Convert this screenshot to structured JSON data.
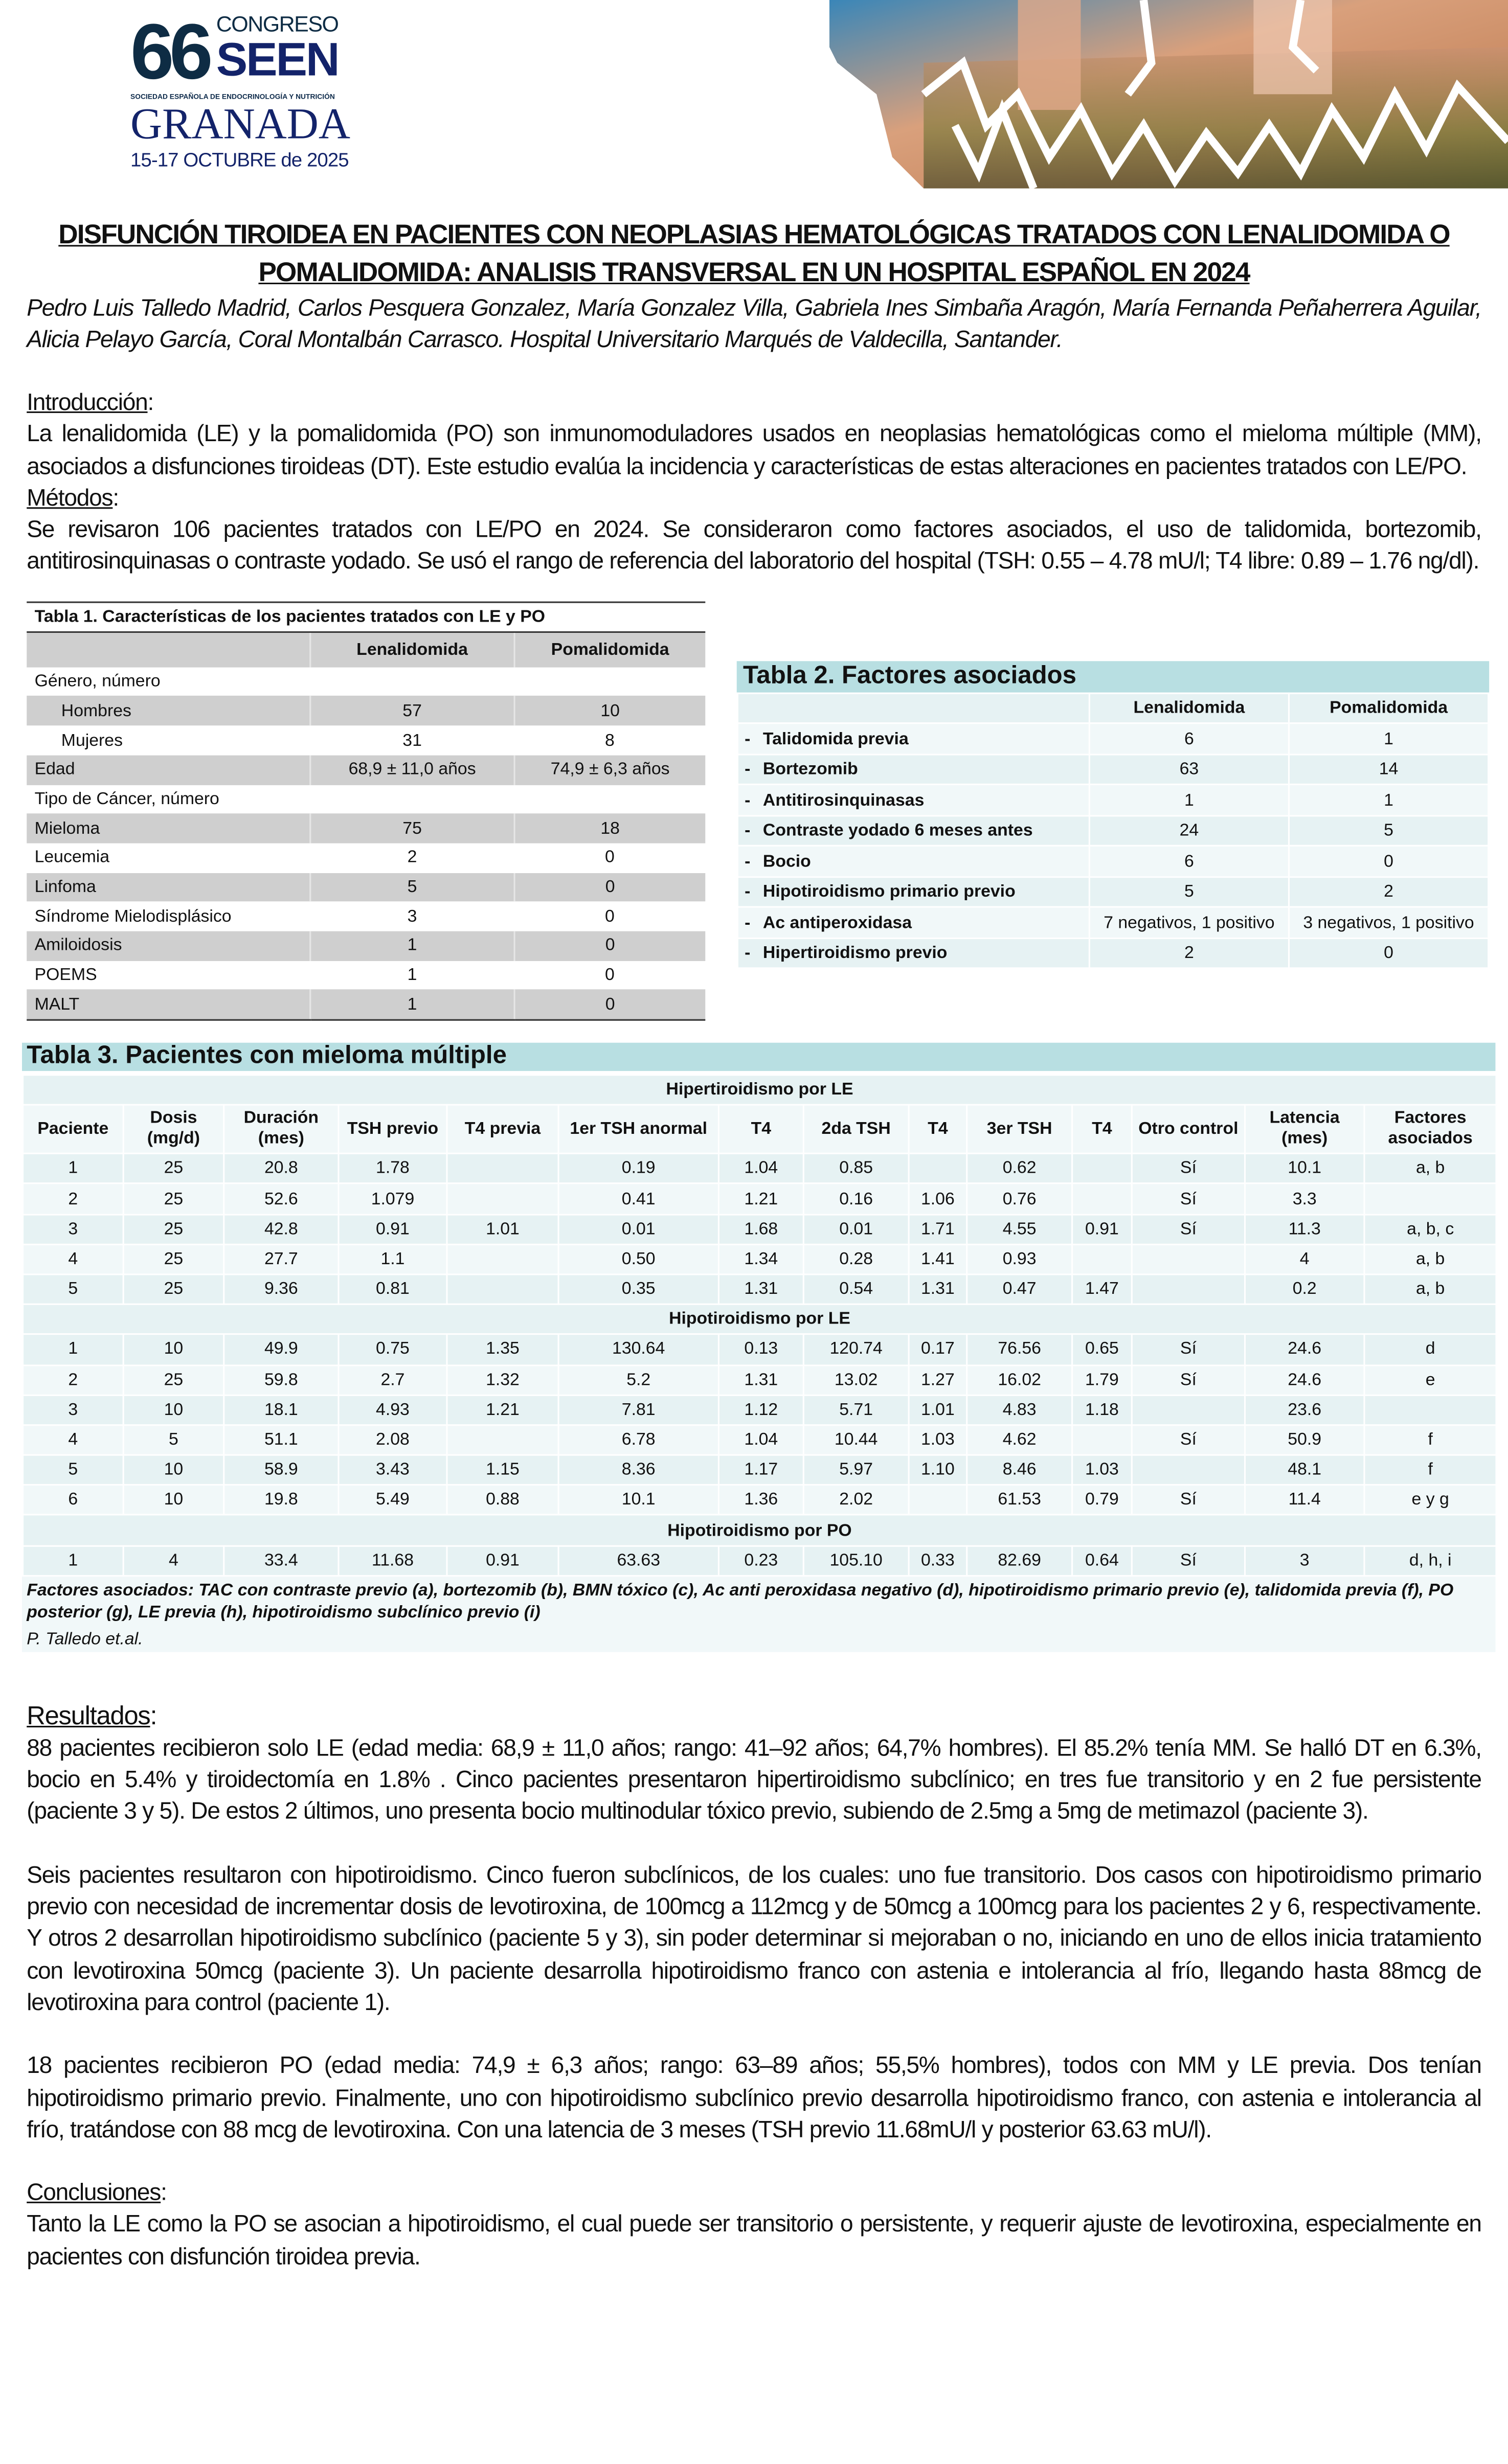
{
  "logo": {
    "number": "66",
    "congreso": "CONGRESO",
    "seen": "SEEN",
    "society": "SOCIEDAD ESPAÑOLA DE ENDOCRINOLOGÍA Y NUTRICIÓN",
    "city": "GRANADA",
    "dates": "15-17 OCTUBRE de 2025"
  },
  "title": "DISFUNCIÓN TIROIDEA EN PACIENTES CON NEOPLASIAS HEMATOLÓGICAS TRATADOS CON LENALIDOMIDA O POMALIDOMIDA: ANALISIS TRANSVERSAL EN UN HOSPITAL ESPAÑOL EN 2024",
  "authors": "Pedro Luis Talledo Madrid, Carlos Pesquera Gonzalez, María Gonzalez Villa, Gabriela Ines Simbaña Aragón, María Fernanda Peñaherrera Aguilar, Alicia Pelayo García, Coral Montalbán Carrasco. Hospital Universitario Marqués de Valdecilla, Santander.",
  "intro": {
    "heading": "Introducción",
    "text": "La lenalidomida (LE) y la pomalidomida (PO) son inmunomoduladores usados en neoplasias hematológicas como el mieloma múltiple (MM), asociados a disfunciones tiroideas (DT). Este estudio evalúa la incidencia y características de estas alteraciones en pacientes tratados con LE/PO."
  },
  "methods": {
    "heading": "Métodos",
    "text": "Se revisaron 106 pacientes tratados con LE/PO en 2024. Se consideraron como factores asociados, el uso de talidomida, bortezomib, antitirosinquinasas o contraste yodado. Se usó el rango de referencia del laboratorio del hospital (TSH: 0.55 – 4.78 mU/l; T4 libre: 0.89 – 1.76 ng/dl)."
  },
  "table1": {
    "caption": "Tabla 1. Características de los pacientes tratados con LE y PO",
    "columns": [
      "",
      "Lenalidomida",
      "Pomalidomida"
    ],
    "rows": [
      {
        "label": "Género, número",
        "le": "",
        "po": "",
        "shade": false
      },
      {
        "label": "Hombres",
        "le": "57",
        "po": "10",
        "shade": true,
        "indent": true
      },
      {
        "label": "Mujeres",
        "le": "31",
        "po": "8",
        "shade": false,
        "indent": true
      },
      {
        "label": "Edad",
        "le": "68,9 ± 11,0 años",
        "po": "74,9 ± 6,3 años",
        "shade": true
      },
      {
        "label": "Tipo de Cáncer, número",
        "le": "",
        "po": "",
        "shade": false
      },
      {
        "label": "Mieloma",
        "le": "75",
        "po": "18",
        "shade": true
      },
      {
        "label": "Leucemia",
        "le": "2",
        "po": "0",
        "shade": false
      },
      {
        "label": "Linfoma",
        "le": "5",
        "po": "0",
        "shade": true
      },
      {
        "label": "Síndrome Mielodisplásico",
        "le": "3",
        "po": "0",
        "shade": false
      },
      {
        "label": "Amiloidosis",
        "le": "1",
        "po": "0",
        "shade": true
      },
      {
        "label": "POEMS",
        "le": "1",
        "po": "0",
        "shade": false
      },
      {
        "label": "MALT",
        "le": "1",
        "po": "0",
        "shade": true
      }
    ]
  },
  "table2": {
    "caption": "Tabla 2. Factores asociados",
    "columns": [
      "",
      "Lenalidomida",
      "Pomalidomida"
    ],
    "bullet": "-",
    "rows": [
      {
        "label": "Talidomida previa",
        "le": "6",
        "po": "1"
      },
      {
        "label": "Bortezomib",
        "le": "63",
        "po": "14"
      },
      {
        "label": "Antitirosinquinasas",
        "le": "1",
        "po": "1"
      },
      {
        "label": "Contraste yodado 6 meses antes",
        "le": "24",
        "po": "5"
      },
      {
        "label": "Bocio",
        "le": "6",
        "po": "0"
      },
      {
        "label": "Hipotiroidismo primario previo",
        "le": "5",
        "po": "2"
      },
      {
        "label": "Ac antiperoxidasa",
        "le": "7 negativos, 1 positivo",
        "po": "3 negativos, 1 positivo"
      },
      {
        "label": "Hipertiroidismo previo",
        "le": "2",
        "po": "0"
      }
    ]
  },
  "table3": {
    "caption": "Tabla 3. Pacientes con mieloma múltiple",
    "columns": [
      "Paciente",
      "Dosis (mg/d)",
      "Duración (mes)",
      "TSH previo",
      "T4 previa",
      "1er TSH anormal",
      "T4",
      "2da TSH",
      "T4",
      "3er TSH",
      "T4",
      "Otro control",
      "Latencia (mes)",
      "Factores asociados"
    ],
    "groups": [
      {
        "title": "Hipertiroidismo por LE",
        "rows": [
          [
            "1",
            "25",
            "20.8",
            "1.78",
            "",
            "0.19",
            "1.04",
            "0.85",
            "",
            "0.62",
            "",
            "Sí",
            "10.1",
            "a, b"
          ],
          [
            "2",
            "25",
            "52.6",
            "1.079",
            "",
            "0.41",
            "1.21",
            "0.16",
            "1.06",
            "0.76",
            "",
            "Sí",
            "3.3",
            ""
          ],
          [
            "3",
            "25",
            "42.8",
            "0.91",
            "1.01",
            "0.01",
            "1.68",
            "0.01",
            "1.71",
            "4.55",
            "0.91",
            "Sí",
            "11.3",
            "a, b, c"
          ],
          [
            "4",
            "25",
            "27.7",
            "1.1",
            "",
            "0.50",
            "1.34",
            "0.28",
            "1.41",
            "0.93",
            "",
            "",
            "4",
            "a, b"
          ],
          [
            "5",
            "25",
            "9.36",
            "0.81",
            "",
            "0.35",
            "1.31",
            "0.54",
            "1.31",
            "0.47",
            "1.47",
            "",
            "0.2",
            "a, b"
          ]
        ]
      },
      {
        "title": "Hipotiroidismo por LE",
        "rows": [
          [
            "1",
            "10",
            "49.9",
            "0.75",
            "1.35",
            "130.64",
            "0.13",
            "120.74",
            "0.17",
            "76.56",
            "0.65",
            "Sí",
            "24.6",
            "d"
          ],
          [
            "2",
            "25",
            "59.8",
            "2.7",
            "1.32",
            "5.2",
            "1.31",
            "13.02",
            "1.27",
            "16.02",
            "1.79",
            "Sí",
            "24.6",
            "e"
          ],
          [
            "3",
            "10",
            "18.1",
            "4.93",
            "1.21",
            "7.81",
            "1.12",
            "5.71",
            "1.01",
            "4.83",
            "1.18",
            "",
            "23.6",
            ""
          ],
          [
            "4",
            "5",
            "51.1",
            "2.08",
            "",
            "6.78",
            "1.04",
            "10.44",
            "1.03",
            "4.62",
            "",
            "Sí",
            "50.9",
            "f"
          ],
          [
            "5",
            "10",
            "58.9",
            "3.43",
            "1.15",
            "8.36",
            "1.17",
            "5.97",
            "1.10",
            "8.46",
            "1.03",
            "",
            "48.1",
            "f"
          ],
          [
            "6",
            "10",
            "19.8",
            "5.49",
            "0.88",
            "10.1",
            "1.36",
            "2.02",
            "",
            "61.53",
            "0.79",
            "Sí",
            "11.4",
            "e y g"
          ]
        ]
      },
      {
        "title": "Hipotiroidismo por PO",
        "rows": [
          [
            "1",
            "4",
            "33.4",
            "11.68",
            "0.91",
            "63.63",
            "0.23",
            "105.10",
            "0.33",
            "82.69",
            "0.64",
            "Sí",
            "3",
            "d, h, i"
          ]
        ]
      }
    ],
    "footnote": "Factores asociados: TAC con contraste previo (a), bortezomib (b), BMN tóxico (c), Ac anti peroxidasa negativo (d), hipotiroidismo primario previo (e), talidomida previa (f), PO posterior (g),  LE previa (h), hipotiroidismo subclínico previo (i)",
    "credit": "P. Talledo et.al."
  },
  "results": {
    "heading": "Resultados",
    "paragraphs": [
      "88 pacientes recibieron solo LE (edad media: 68,9 ± 11,0 años; rango: 41–92 años; 64,7% hombres). El 85.2% tenía MM. Se halló DT en 6.3%, bocio en 5.4% y tiroidectomía en 1.8% . Cinco pacientes presentaron hipertiroidismo subclínico; en tres fue transitorio y en 2 fue persistente (paciente 3 y 5). De estos 2 últimos, uno presenta bocio multinodular tóxico previo, subiendo de 2.5mg a 5mg de metimazol  (paciente 3).",
      "Seis pacientes resultaron con hipotiroidismo. Cinco fueron subclínicos, de los cuales: uno fue transitorio. Dos casos  con hipotiroidismo primario previo con necesidad de incrementar dosis de levotiroxina, de 100mcg a 112mcg y de 50mcg a 100mcg para los pacientes 2 y 6, respectivamente. Y otros 2 desarrollan hipotiroidismo subclínico (paciente 5 y 3), sin poder determinar si mejoraban o no, iniciando en uno de ellos inicia tratamiento con levotiroxina 50mcg (paciente 3). Un paciente desarrolla hipotiroidismo franco con astenia e intolerancia al frío, llegando hasta 88mcg de levotiroxina para control (paciente 1).",
      "18 pacientes recibieron PO (edad media: 74,9 ± 6,3 años; rango: 63–89 años; 55,5% hombres), todos con MM y LE previa. Dos tenían hipotiroidismo primario previo. Finalmente, uno con hipotiroidismo subclínico previo desarrolla hipotiroidismo franco, con astenia e intolerancia al frío, tratándose con 88 mcg de levotiroxina. Con una latencia de 3 meses (TSH previo 11.68mU/l y posterior 63.63 mU/l)."
    ]
  },
  "conclusions": {
    "heading": "Conclusiones",
    "text": "Tanto la LE como la PO se asocian a hipotiroidismo, el cual puede ser transitorio o persistente, y requerir ajuste de levotiroxina, especialmente en pacientes con disfunción tiroidea previa."
  },
  "colors": {
    "table_header_teal": "#b8dfe2",
    "table_row_light": "#e6f2f3",
    "table1_gray": "#cfcfcf",
    "logo_navy": "#13236a"
  }
}
